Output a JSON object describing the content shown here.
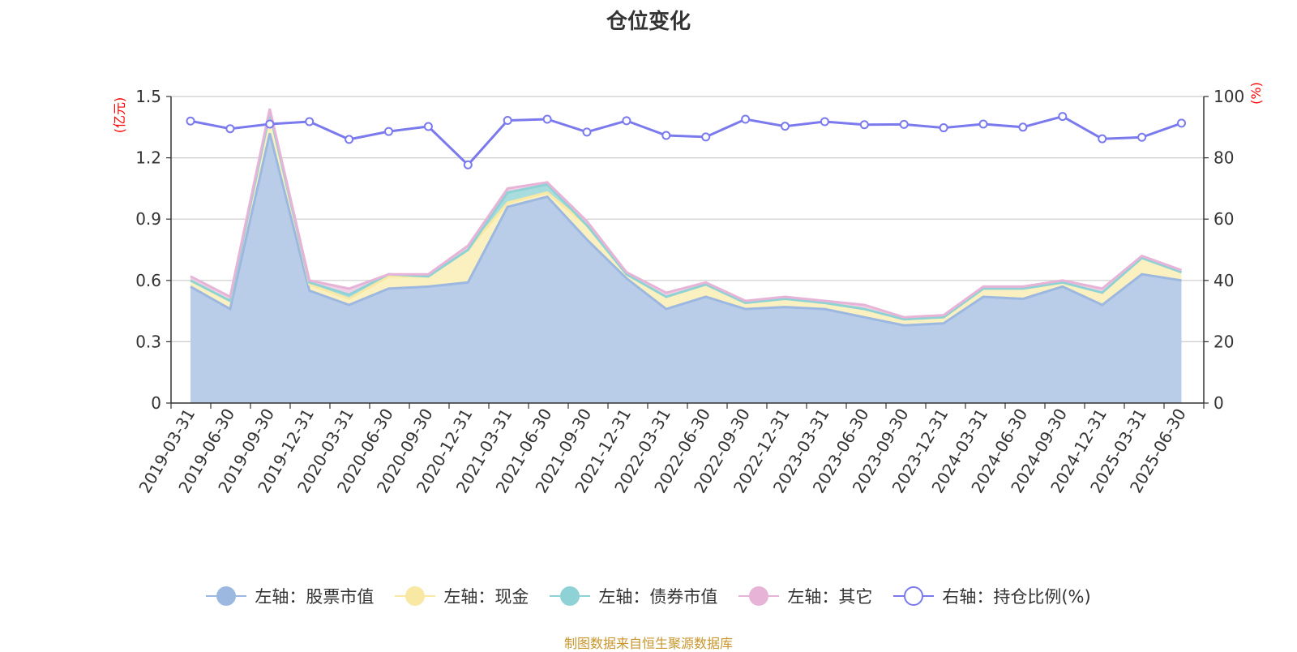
{
  "title": "仓位变化",
  "left_unit": "(亿元)",
  "right_unit": "(%)",
  "source": "制图数据来自恒生聚源数据库",
  "legend": [
    {
      "label": "左轴：股票市值",
      "color": "#9db8e0",
      "hollow": false
    },
    {
      "label": "左轴：现金",
      "color": "#f9e8a4",
      "hollow": false
    },
    {
      "label": "左轴：债券市值",
      "color": "#8fd2d5",
      "hollow": false
    },
    {
      "label": "左轴：其它",
      "color": "#e7b4d8",
      "hollow": false
    },
    {
      "label": "右轴：持仓比例(%)",
      "color": "#7a7aee",
      "hollow": true
    }
  ],
  "chart_data": {
    "type": "area",
    "title": "仓位变化",
    "categories": [
      "2019-03-31",
      "2019-06-30",
      "2019-09-30",
      "2019-12-31",
      "2020-03-31",
      "2020-06-30",
      "2020-09-30",
      "2020-12-31",
      "2021-03-31",
      "2021-06-30",
      "2021-09-30",
      "2021-12-31",
      "2022-03-31",
      "2022-06-30",
      "2022-09-30",
      "2022-12-31",
      "2023-03-31",
      "2023-06-30",
      "2023-09-30",
      "2023-12-31",
      "2024-03-31",
      "2024-06-30",
      "2024-09-30",
      "2024-12-31",
      "2025-03-31",
      "2025-06-30"
    ],
    "stacked": true,
    "series": [
      {
        "name": "左轴：股票市值",
        "axis": "left",
        "color": "#9db8e0",
        "values": [
          0.57,
          0.46,
          1.32,
          0.55,
          0.48,
          0.56,
          0.57,
          0.59,
          0.96,
          1.01,
          0.8,
          0.61,
          0.46,
          0.52,
          0.46,
          0.47,
          0.46,
          0.42,
          0.38,
          0.39,
          0.52,
          0.51,
          0.57,
          0.48,
          0.63,
          0.6
        ]
      },
      {
        "name": "左轴：现金",
        "axis": "left",
        "color": "#f9e8a4",
        "values": [
          0.03,
          0.04,
          0.1,
          0.03,
          0.03,
          0.06,
          0.05,
          0.16,
          0.02,
          0.02,
          0.07,
          0.02,
          0.06,
          0.06,
          0.03,
          0.04,
          0.03,
          0.04,
          0.03,
          0.03,
          0.04,
          0.05,
          0.02,
          0.06,
          0.08,
          0.04
        ]
      },
      {
        "name": "左轴：债券市值",
        "axis": "left",
        "color": "#8fd2d5",
        "values": [
          0,
          0,
          0,
          0.01,
          0.02,
          0.01,
          0,
          0,
          0.05,
          0.04,
          0,
          0,
          0,
          0,
          0,
          0,
          0,
          0,
          0,
          0,
          0,
          0,
          0,
          0,
          0,
          0
        ]
      },
      {
        "name": "左轴：其它",
        "axis": "left",
        "color": "#e7b4d8",
        "values": [
          0.02,
          0.02,
          0.02,
          0.01,
          0.03,
          0,
          0.01,
          0.02,
          0.02,
          0.01,
          0.02,
          0.01,
          0.02,
          0.01,
          0.01,
          0.01,
          0.01,
          0.02,
          0.01,
          0.01,
          0.01,
          0.01,
          0.01,
          0.02,
          0.01,
          0.01
        ]
      },
      {
        "name": "右轴：持仓比例(%)",
        "axis": "right",
        "type": "line",
        "color": "#7a7aee",
        "values": [
          92,
          89.5,
          91,
          91.8,
          86,
          88.6,
          90.2,
          77.7,
          92.2,
          92.6,
          88.4,
          92.1,
          87.3,
          86.8,
          92.6,
          90.3,
          91.8,
          90.8,
          90.9,
          89.8,
          91,
          90,
          93.5,
          86.2,
          86.7,
          91.3
        ]
      }
    ],
    "left_axis": {
      "min": 0,
      "max": 1.5,
      "ticks": [
        "0",
        "0.3",
        "0.6",
        "0.9",
        "1.2",
        "1.5"
      ]
    },
    "right_axis": {
      "min": 0,
      "max": 100,
      "ticks": [
        "0",
        "20",
        "40",
        "60",
        "80",
        "100"
      ]
    },
    "grid": true,
    "legend_position": "bottom"
  }
}
